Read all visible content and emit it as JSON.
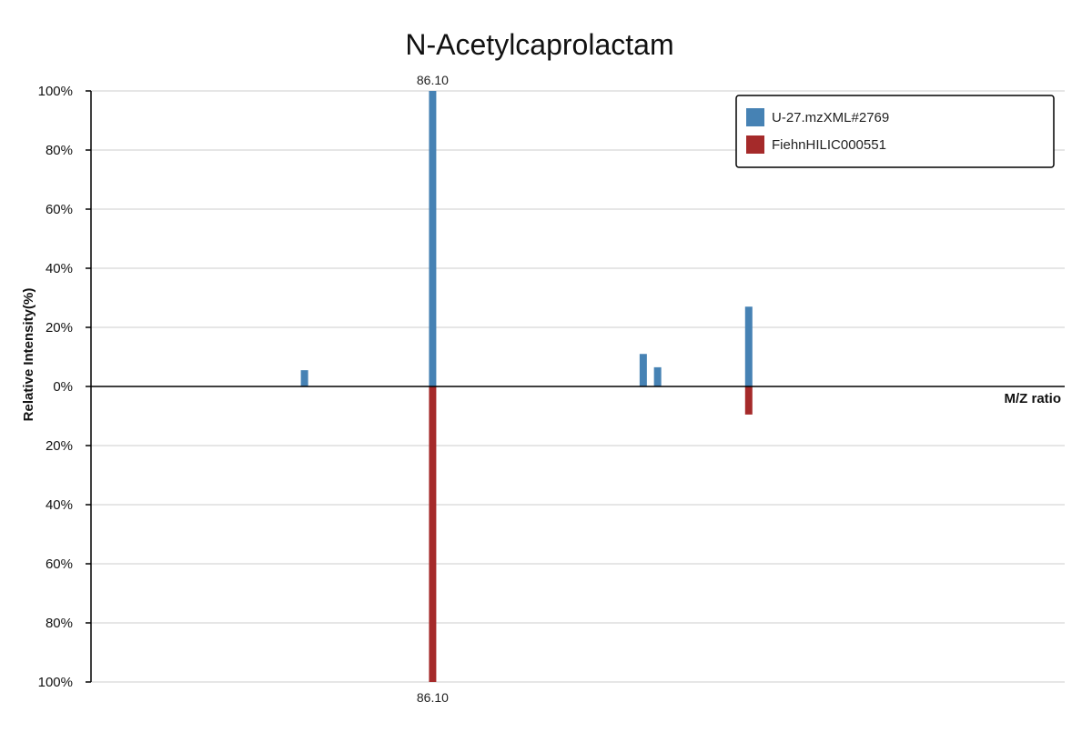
{
  "chart_data": {
    "type": "bar",
    "title": "N-Acetylcaprolactam",
    "xlabel": "M/Z ratio",
    "ylabel": "Relative Intensity(%)",
    "ylim": [
      -100,
      100
    ],
    "yticks": [
      "100%",
      "80%",
      "60%",
      "40%",
      "20%",
      "0%",
      "20%",
      "40%",
      "60%",
      "80%",
      "100%"
    ],
    "grid": true,
    "legend_position": "top-right",
    "series": [
      {
        "name": "U-27.mzXML#2769",
        "color": "#4682b4",
        "direction": "up",
        "peaks": [
          {
            "mz": 69.07,
            "value": 5.5
          },
          {
            "mz": 86.1,
            "value": 100,
            "label": "86.10"
          },
          {
            "mz": 114.09,
            "value": 11
          },
          {
            "mz": 116.0,
            "value": 6.5
          },
          {
            "mz": 128.11,
            "value": 27
          }
        ]
      },
      {
        "name": "FiehnHILIC000551",
        "color": "#a52a2a",
        "direction": "down",
        "peaks": [
          {
            "mz": 86.1,
            "value": 100,
            "label": "86.10"
          },
          {
            "mz": 128.11,
            "value": 9.5
          }
        ]
      }
    ]
  }
}
